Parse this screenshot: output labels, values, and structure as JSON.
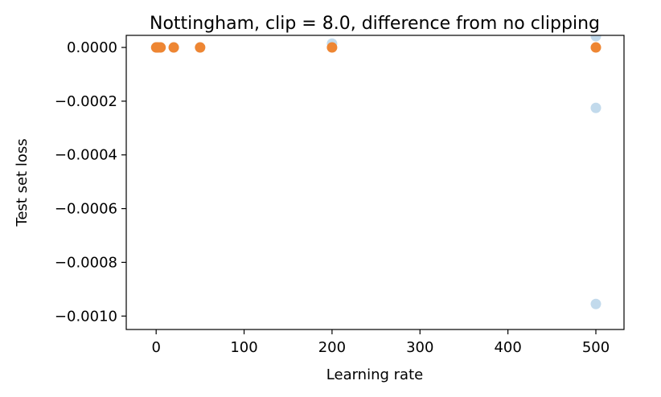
{
  "chart_data": {
    "type": "scatter",
    "title": "Nottingham, clip = 8.0, difference from no clipping",
    "xlabel": "Learning rate",
    "ylabel": "Test set loss",
    "xlim": [
      -34,
      532
    ],
    "ylim": [
      -0.00105,
      4.5e-05
    ],
    "xticks": [
      0,
      100,
      200,
      300,
      400,
      500
    ],
    "xtick_labels": [
      "0",
      "100",
      "200",
      "300",
      "400",
      "500"
    ],
    "yticks": [
      0.0,
      -0.0002,
      -0.0004,
      -0.0006,
      -0.0008,
      -0.001
    ],
    "ytick_labels": [
      "0.0000",
      "−0.0002",
      "−0.0004",
      "−0.0006",
      "−0.0008",
      "−0.0010"
    ],
    "grid": false,
    "series": [
      {
        "color": "#aecde6",
        "points": [
          {
            "x": 0.1,
            "y": 0.0
          },
          {
            "x": 2,
            "y": 0.0
          },
          {
            "x": 5,
            "y": 0.0
          },
          {
            "x": 20,
            "y": 0.0
          },
          {
            "x": 50,
            "y": 0.0
          },
          {
            "x": 200,
            "y": 1.45e-05
          },
          {
            "x": 500,
            "y": 4.2e-05
          },
          {
            "x": 500,
            "y": -0.000225
          },
          {
            "x": 500,
            "y": -0.000955
          }
        ]
      },
      {
        "color": "#ee8633",
        "points": [
          {
            "x": 0.1,
            "y": 0.0
          },
          {
            "x": 1,
            "y": 0.0
          },
          {
            "x": 2,
            "y": 0.0
          },
          {
            "x": 5,
            "y": 0.0
          },
          {
            "x": 20,
            "y": 0.0
          },
          {
            "x": 50,
            "y": 0.0
          },
          {
            "x": 200,
            "y": 0.0
          },
          {
            "x": 500,
            "y": 0.0
          }
        ]
      }
    ]
  }
}
